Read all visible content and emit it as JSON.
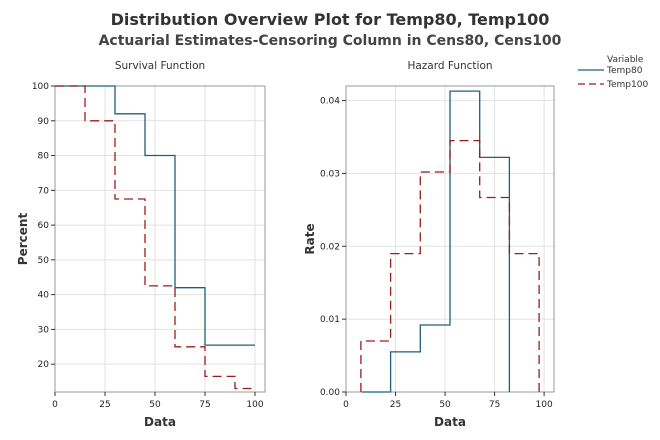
{
  "title": "Distribution Overview Plot for Temp80, Temp100",
  "subtitle": "Actuarial Estimates-Censoring Column in Cens80, Cens100",
  "legend": {
    "title": "Variable",
    "placement": "top-right",
    "entries": [
      {
        "name": "Temp80",
        "color": "#1f5f7a",
        "style": "solid"
      },
      {
        "name": "Temp100",
        "color": "#9b1c1c",
        "style": "dashed"
      }
    ]
  },
  "chart_data": [
    {
      "type": "line",
      "step": true,
      "title": "Survival Function",
      "xlabel": "Data",
      "ylabel": "Percent",
      "xlim": [
        0,
        105
      ],
      "ylim": [
        12,
        100
      ],
      "xticks": [
        0,
        25,
        50,
        75,
        100
      ],
      "yticks": [
        20,
        30,
        40,
        50,
        60,
        70,
        80,
        90,
        100
      ],
      "grid": true,
      "series": [
        {
          "name": "Temp80",
          "color": "#1f5f7a",
          "dash": false,
          "x": [
            0,
            30,
            30,
            45,
            45,
            60,
            60,
            75,
            75,
            100
          ],
          "y": [
            100,
            100,
            92,
            92,
            80,
            80,
            42,
            42,
            25.5,
            25.5
          ]
        },
        {
          "name": "Temp100",
          "color": "#9b1c1c",
          "dash": true,
          "x": [
            0,
            15,
            15,
            30,
            30,
            45,
            45,
            60,
            60,
            75,
            75,
            90,
            90,
            100
          ],
          "y": [
            100,
            100,
            90,
            90,
            67.5,
            67.5,
            42.5,
            42.5,
            25,
            25,
            16.5,
            16.5,
            13,
            13
          ]
        }
      ]
    },
    {
      "type": "line",
      "step": true,
      "title": "Hazard Function",
      "xlabel": "Data",
      "ylabel": "Rate",
      "xlim": [
        0,
        105
      ],
      "ylim": [
        0,
        0.042
      ],
      "xticks": [
        0,
        25,
        50,
        75,
        100
      ],
      "yticks": [
        0,
        0.01,
        0.02,
        0.03,
        0.04
      ],
      "yticklabels": [
        "0.00",
        "0.01",
        "0.02",
        "0.03",
        "0.04"
      ],
      "grid": true,
      "series": [
        {
          "name": "Temp80",
          "color": "#1f5f7a",
          "dash": false,
          "x": [
            8,
            22.5,
            22.5,
            37.5,
            37.5,
            52.5,
            52.5,
            67.5,
            67.5,
            82.5,
            82.5
          ],
          "y": [
            0,
            0,
            0.0055,
            0.0055,
            0.0092,
            0.0092,
            0.0413,
            0.0413,
            0.0322,
            0.0322,
            0
          ]
        },
        {
          "name": "Temp100",
          "color": "#9b1c1c",
          "dash": true,
          "x": [
            7.5,
            7.5,
            22.5,
            22.5,
            37.5,
            37.5,
            52.5,
            52.5,
            67.5,
            67.5,
            82.5,
            82.5,
            97.5,
            97.5
          ],
          "y": [
            0,
            0.007,
            0.007,
            0.019,
            0.019,
            0.0302,
            0.0302,
            0.0345,
            0.0345,
            0.0267,
            0.0267,
            0.019,
            0.019,
            0
          ]
        }
      ]
    }
  ]
}
